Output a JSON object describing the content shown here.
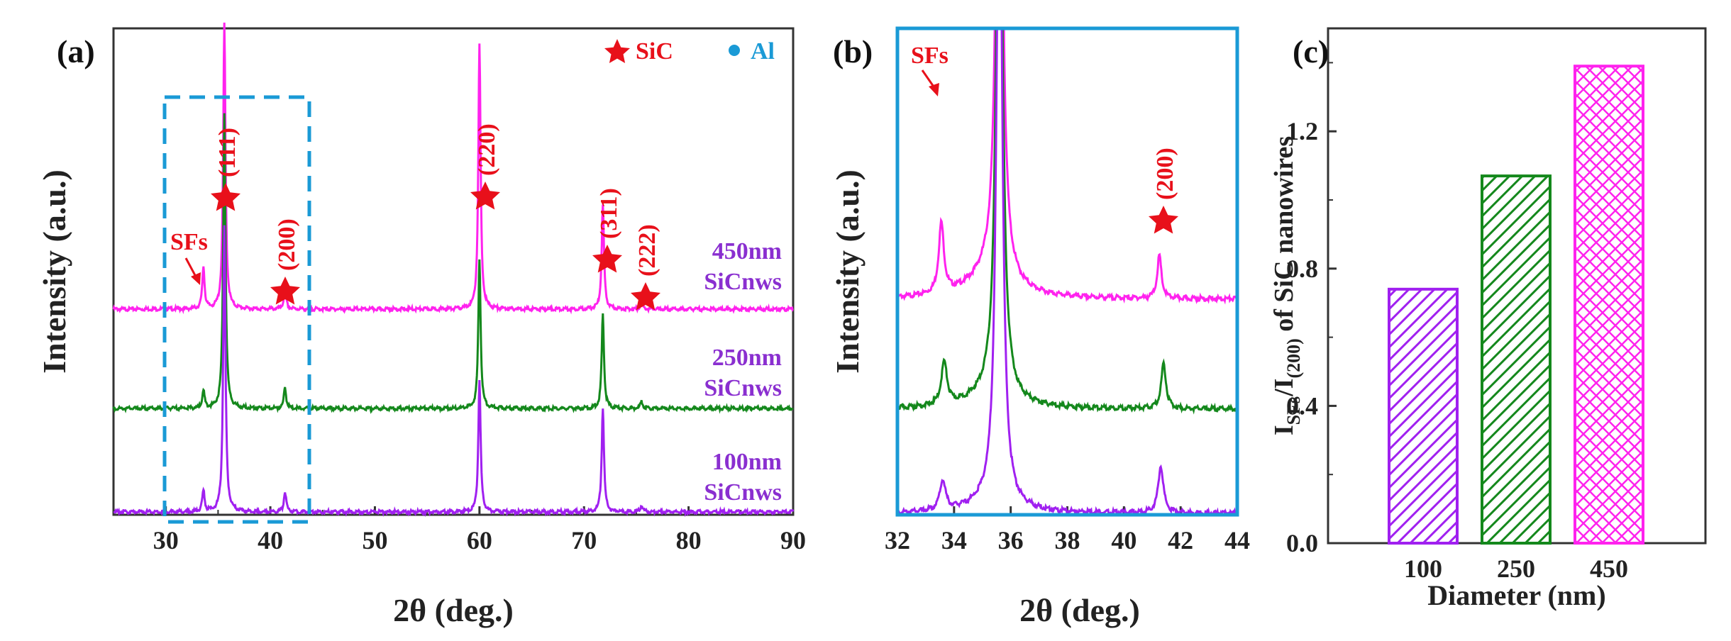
{
  "colors": {
    "magenta": "#ff22ee",
    "green": "#14881c",
    "violet": "#a020f0",
    "red": "#e8101a",
    "blue": "#1a9ad6",
    "purple_label": "#8a2fd0"
  },
  "legend": {
    "sic": "SiC",
    "al": "Al"
  },
  "chart_data": [
    {
      "type": "line",
      "panel_label": "(a)",
      "xlabel": "2θ (deg.)",
      "ylabel": "Intensity (a.u.)",
      "xlim": [
        25,
        90
      ],
      "x_ticks": [
        "30",
        "40",
        "50",
        "60",
        "70",
        "80",
        "90"
      ],
      "grid": false,
      "series": [
        {
          "label_line1": "450nm",
          "label_line2": "SiCnws",
          "peaks": [
            [
              33.6,
              0.12
            ],
            [
              35.6,
              0.82
            ],
            [
              41.4,
              0.06
            ],
            [
              60.0,
              0.76
            ],
            [
              71.8,
              0.3
            ],
            [
              75.5,
              0.02
            ]
          ]
        },
        {
          "label_line1": "250nm",
          "label_line2": "SiCnws",
          "peaks": [
            [
              33.6,
              0.05
            ],
            [
              35.6,
              0.85
            ],
            [
              41.4,
              0.06
            ],
            [
              60.0,
              0.43
            ],
            [
              71.8,
              0.27
            ],
            [
              75.5,
              0.02
            ]
          ]
        },
        {
          "label_line1": "100nm",
          "label_line2": "SiCnws",
          "peaks": [
            [
              33.6,
              0.06
            ],
            [
              35.6,
              0.82
            ],
            [
              41.4,
              0.06
            ],
            [
              60.0,
              0.38
            ],
            [
              71.8,
              0.3
            ],
            [
              75.5,
              0.02
            ]
          ]
        }
      ],
      "annotations": {
        "sfs": "SFs",
        "p111": "(111)",
        "p200": "(200)",
        "p220": "(220)",
        "p311": "(311)",
        "p222": "(222)"
      },
      "dashed_box_range": [
        30,
        43.5
      ]
    },
    {
      "type": "line",
      "panel_label": "(b)",
      "xlabel": "2θ (deg.)",
      "ylabel": "Intensity (a.u.)",
      "xlim": [
        32,
        44
      ],
      "x_ticks": [
        "32",
        "34",
        "36",
        "38",
        "40",
        "42",
        "44"
      ],
      "grid": false,
      "annotations": {
        "sfs": "SFs",
        "p200": "(200)"
      }
    },
    {
      "type": "bar",
      "panel_label": "(c)",
      "categories": [
        "100",
        "250",
        "450"
      ],
      "values": [
        0.74,
        1.07,
        1.39
      ],
      "xlabel": "Diameter (nm)",
      "ylabel": "I_SFs/I_(200) of SiC nanowires",
      "ylabel_parts": {
        "i1": "I",
        "sub1": "SFs",
        "slash": "/I",
        "sub2": "(200)",
        "rest": " of SiC nanowires"
      },
      "ylim": [
        0,
        1.5
      ],
      "y_ticks": [
        "0.0",
        "0.4",
        "0.8",
        "1.2"
      ],
      "grid": false
    }
  ]
}
